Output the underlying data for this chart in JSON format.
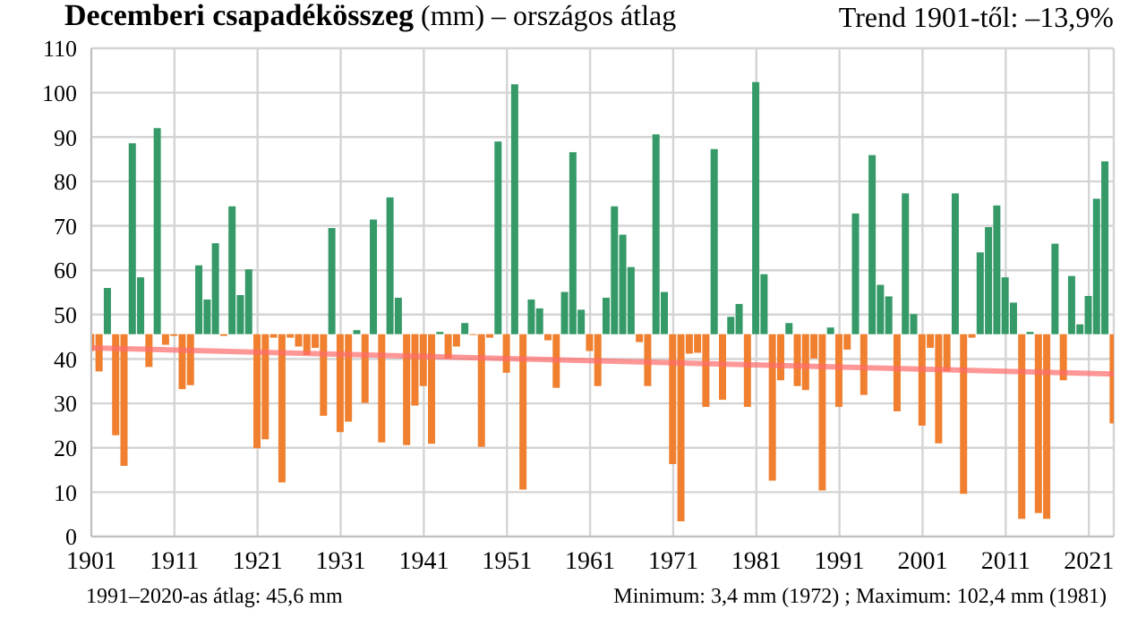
{
  "chart_data": {
    "type": "bar",
    "title": "Decemberi csapadékösszeg",
    "subtitle": "(mm) – országos átlag",
    "annotations": [
      "Trend 1901-től: –13,9%",
      "1991–2020-as átlag: 45,6 mm",
      "Minimum: 3,4 mm (1972) ; Maximum: 102,4 mm (1981)"
    ],
    "x": [
      1901,
      1902,
      1903,
      1904,
      1905,
      1906,
      1907,
      1908,
      1909,
      1910,
      1911,
      1912,
      1913,
      1914,
      1915,
      1916,
      1917,
      1918,
      1919,
      1920,
      1921,
      1922,
      1923,
      1924,
      1925,
      1926,
      1927,
      1928,
      1929,
      1930,
      1931,
      1932,
      1933,
      1934,
      1935,
      1936,
      1937,
      1938,
      1939,
      1940,
      1941,
      1942,
      1943,
      1944,
      1945,
      1946,
      1947,
      1948,
      1949,
      1950,
      1951,
      1952,
      1953,
      1954,
      1955,
      1956,
      1957,
      1958,
      1959,
      1960,
      1961,
      1962,
      1963,
      1964,
      1965,
      1966,
      1967,
      1968,
      1969,
      1970,
      1971,
      1972,
      1973,
      1974,
      1975,
      1976,
      1977,
      1978,
      1979,
      1980,
      1981,
      1982,
      1983,
      1984,
      1985,
      1986,
      1987,
      1988,
      1989,
      1990,
      1991,
      1992,
      1993,
      1994,
      1995,
      1996,
      1997,
      1998,
      1999,
      2000,
      2001,
      2002,
      2003,
      2004,
      2005,
      2006,
      2007,
      2008,
      2009,
      2010,
      2011,
      2012,
      2013,
      2014,
      2015,
      2016,
      2017,
      2018,
      2019,
      2020,
      2021,
      2022,
      2023,
      2024
    ],
    "series": [
      {
        "values": [
          -3.8,
          -8.4,
          10.4,
          -22.8,
          -29.7,
          43.0,
          12.8,
          -7.4,
          46.4,
          -2.4,
          -0.4,
          -12.4,
          -11.5,
          15.5,
          7.8,
          20.5,
          -0.4,
          28.8,
          8.8,
          14.6,
          -25.7,
          -23.7,
          -0.8,
          -33.4,
          -0.8,
          -2.8,
          -4.7,
          -3.1,
          -18.4,
          23.9,
          -22.1,
          -19.7,
          0.9,
          -15.5,
          25.8,
          -24.4,
          30.8,
          8.2,
          -25.0,
          -16.1,
          -11.7,
          -24.7,
          0.5,
          -5.5,
          -2.8,
          2.5,
          -0.2,
          -25.4,
          -0.8,
          43.4,
          -8.7,
          56.3,
          -35.0,
          7.8,
          5.8,
          -1.4,
          -12.1,
          9.5,
          41.0,
          5.5,
          -3.8,
          -11.7,
          8.2,
          28.8,
          22.4,
          15.1,
          -1.8,
          -11.7,
          45.0,
          9.5,
          -29.3,
          -42.2,
          -4.4,
          -4.2,
          -16.4,
          41.7,
          -14.8,
          3.9,
          6.8,
          -16.4,
          56.8,
          13.5,
          -33.0,
          -10.4,
          2.5,
          -11.7,
          -12.6,
          -5.5,
          -35.2,
          1.5,
          -16.4,
          -3.5,
          27.2,
          -13.7,
          40.3,
          11.1,
          8.5,
          -17.4,
          31.7,
          4.5,
          -20.6,
          -3.1,
          -24.6,
          -8.4,
          31.7,
          -36.0,
          -0.8,
          18.4,
          24.1,
          29.0,
          12.8,
          7.1,
          -41.6,
          0.5,
          -40.3,
          -41.6,
          20.4,
          -10.4,
          13.1,
          2.2,
          8.6,
          30.5,
          38.9,
          -20.1
        ],
        "base": [
          45.6,
          45.6,
          45.6,
          45.6,
          45.6,
          45.6,
          45.6,
          45.6,
          45.6,
          45.6,
          45.6,
          45.6,
          45.6,
          45.6,
          45.6,
          45.6,
          45.6,
          45.6,
          45.6,
          45.6,
          45.6,
          45.6,
          45.6,
          45.6,
          45.6,
          45.6,
          45.6,
          45.6,
          45.6,
          45.6,
          45.6,
          45.6,
          45.6,
          45.6,
          45.6,
          45.6,
          45.6,
          45.6,
          45.6,
          45.6,
          45.6,
          45.6,
          45.6,
          45.6,
          45.6,
          45.6,
          45.6,
          45.6,
          45.6,
          45.6,
          45.6,
          45.6,
          45.6,
          45.6,
          45.6,
          45.6,
          45.6,
          45.6,
          45.6,
          45.6,
          45.6,
          45.6,
          45.6,
          45.6,
          45.6,
          45.6,
          45.6,
          45.6,
          45.6,
          45.6,
          45.6,
          45.6,
          45.6,
          45.6,
          45.6,
          45.6,
          45.6,
          45.6,
          45.6,
          45.6,
          45.6,
          45.6,
          45.6,
          45.6,
          45.6,
          45.6,
          45.6,
          45.6,
          45.6,
          45.6,
          45.6,
          45.6,
          45.6,
          45.6,
          45.6,
          45.6,
          45.6,
          45.6,
          45.6,
          45.6,
          45.6,
          45.6,
          45.6,
          45.6,
          45.6,
          45.6,
          45.6,
          45.6,
          45.6,
          45.6,
          45.6,
          45.6,
          45.6,
          45.6,
          45.6,
          45.6,
          45.6,
          45.6,
          45.6,
          45.6,
          45.6,
          45.6,
          45.6,
          45.6
        ],
        "colors": [
          "#f08030",
          "#f08030",
          "#359a68",
          "#f08030",
          "#f08030",
          "#359a68",
          "#359a68",
          "#f08030",
          "#359a68",
          "#f08030",
          "#f08030",
          "#f08030",
          "#f08030",
          "#359a68",
          "#359a68",
          "#359a68",
          "#f08030",
          "#359a68",
          "#359a68",
          "#359a68",
          "#f08030",
          "#f08030",
          "#f08030",
          "#f08030",
          "#f08030",
          "#f08030",
          "#f08030",
          "#f08030",
          "#f08030",
          "#359a68",
          "#f08030",
          "#f08030",
          "#359a68",
          "#f08030",
          "#359a68",
          "#f08030",
          "#359a68",
          "#359a68",
          "#f08030",
          "#f08030",
          "#f08030",
          "#f08030",
          "#359a68",
          "#f08030",
          "#f08030",
          "#359a68",
          "#f08030",
          "#f08030",
          "#f08030",
          "#359a68",
          "#f08030",
          "#359a68",
          "#f08030",
          "#359a68",
          "#359a68",
          "#f08030",
          "#f08030",
          "#359a68",
          "#359a68",
          "#359a68",
          "#f08030",
          "#f08030",
          "#359a68",
          "#359a68",
          "#359a68",
          "#359a68",
          "#f08030",
          "#f08030",
          "#359a68",
          "#359a68",
          "#f08030",
          "#f08030",
          "#f08030",
          "#f08030",
          "#f08030",
          "#359a68",
          "#f08030",
          "#359a68",
          "#359a68",
          "#f08030",
          "#359a68",
          "#359a68",
          "#f08030",
          "#f08030",
          "#359a68",
          "#f08030",
          "#f08030",
          "#f08030",
          "#f08030",
          "#359a68",
          "#f08030",
          "#f08030",
          "#359a68",
          "#f08030",
          "#359a68",
          "#359a68",
          "#359a68",
          "#f08030",
          "#359a68",
          "#359a68",
          "#f08030",
          "#f08030",
          "#f08030",
          "#f08030",
          "#359a68",
          "#f08030",
          "#f08030",
          "#359a68",
          "#359a68",
          "#359a68",
          "#359a68",
          "#359a68",
          "#f08030",
          "#359a68",
          "#f08030",
          "#f08030",
          "#359a68",
          "#f08030",
          "#359a68",
          "#359a68",
          "#359a68",
          "#359a68",
          "#359a68",
          "#f08030"
        ]
      },
      {
        "type": "line",
        "x": [
          1901,
          2024
        ],
        "values": [
          42.5,
          36.6
        ],
        "color": "#ff6b6b"
      }
    ],
    "xlim": [
      1901,
      2024
    ],
    "xticks": [
      1901,
      1911,
      1921,
      1931,
      1941,
      1951,
      1961,
      1971,
      1981,
      1991,
      2001,
      2011,
      2021
    ],
    "ylim": [
      0,
      110
    ],
    "yticks": [
      0,
      10,
      20,
      30,
      40,
      50,
      60,
      70,
      80,
      90,
      100,
      110
    ],
    "grid": true
  }
}
